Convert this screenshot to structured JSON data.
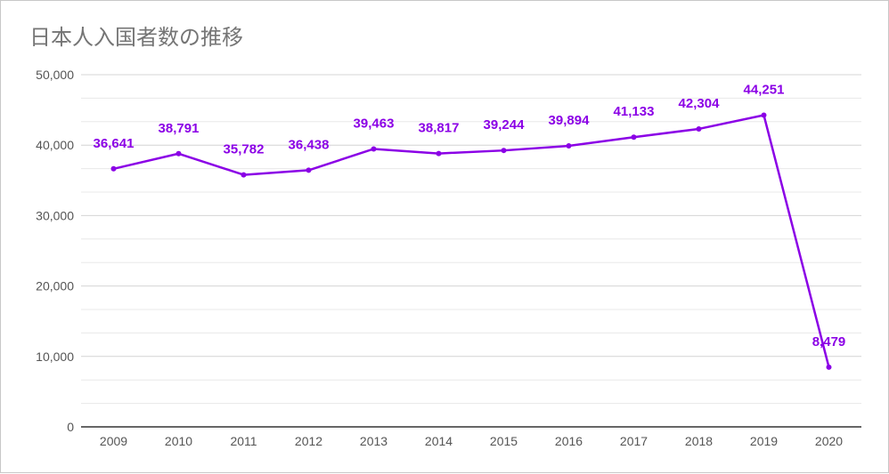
{
  "chart_data": {
    "type": "line",
    "title": "日本人入国者数の推移",
    "xlabel": "",
    "ylabel": "",
    "x": [
      "2009",
      "2010",
      "2011",
      "2012",
      "2013",
      "2014",
      "2015",
      "2016",
      "2017",
      "2018",
      "2019",
      "2020"
    ],
    "series": [
      {
        "values": [
          36641,
          38791,
          35782,
          36438,
          39463,
          38817,
          39244,
          39894,
          41133,
          42304,
          44251,
          8479
        ],
        "data_labels": [
          "36,641",
          "38,791",
          "35,782",
          "36,438",
          "39,463",
          "38,817",
          "39,244",
          "39,894",
          "41,133",
          "42,304",
          "44,251",
          "8,479"
        ],
        "color": "#8b00e6"
      }
    ],
    "ylim": [
      0,
      50000
    ],
    "y_ticks": [
      0,
      10000,
      20000,
      30000,
      40000,
      50000
    ],
    "y_tick_labels": [
      "0",
      "10,000",
      "20,000",
      "30,000",
      "40,000",
      "50,000"
    ],
    "minor_gridlines": true,
    "grid": true,
    "legend": "none"
  }
}
